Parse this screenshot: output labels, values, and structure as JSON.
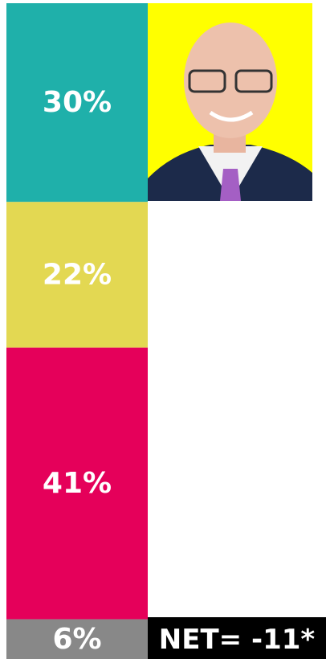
{
  "chart_data": {
    "type": "stacked-column",
    "values": [
      30,
      22,
      41,
      6
    ],
    "value_labels": [
      "30%",
      "22%",
      "41%",
      "6%"
    ],
    "colors": [
      "#1fb0aa",
      "#e3d852",
      "#e5005a",
      "#888888"
    ],
    "annotation": "NET= -11*"
  }
}
